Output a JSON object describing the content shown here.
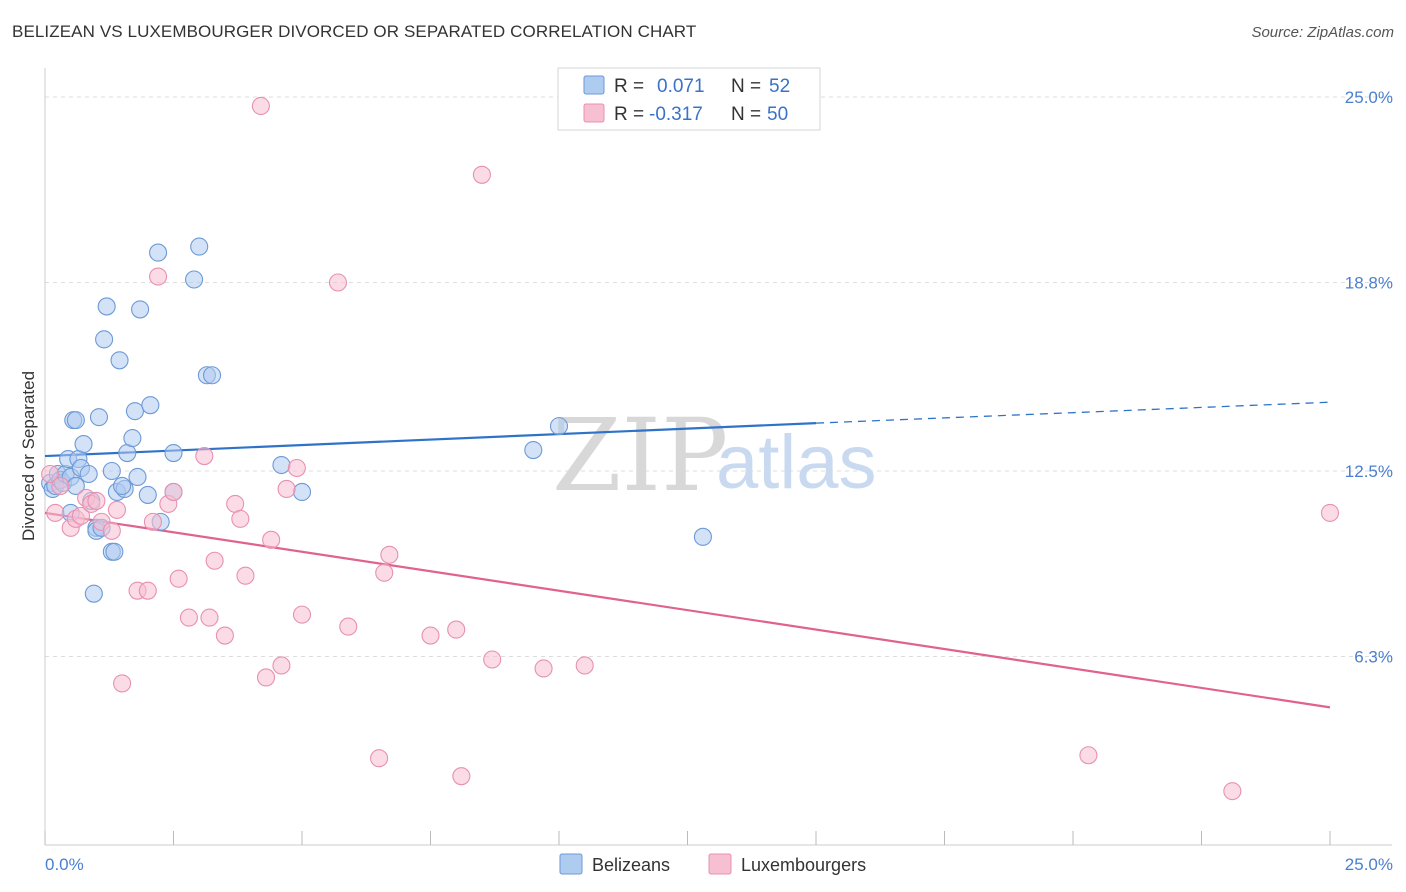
{
  "title": "BELIZEAN VS LUXEMBOURGER DIVORCED OR SEPARATED CORRELATION CHART",
  "source": "Source: ZipAtlas.com",
  "watermark": {
    "zip": "ZIP",
    "atlas": "atlas"
  },
  "colors": {
    "blue_fill": "#aecbf0",
    "blue_stroke": "#6d9ad6",
    "blue_line": "#2f73c9",
    "pink_fill": "#f7bfd2",
    "pink_stroke": "#e890b0",
    "pink_line": "#e0628e",
    "grid": "#dddddd",
    "axis": "#cccccc",
    "tick_text": "#4a7fd0"
  },
  "legend": {
    "rows": [
      {
        "r_label": "R =",
        "r_value": "0.071",
        "n_label": "N =",
        "n_value": "52"
      },
      {
        "r_label": "R =",
        "r_value": "-0.317",
        "n_label": "N =",
        "n_value": "50"
      }
    ]
  },
  "chart_data": {
    "type": "scatter",
    "title": "BELIZEAN VS LUXEMBOURGER DIVORCED OR SEPARATED CORRELATION CHART",
    "xlabel": "",
    "ylabel": "Divorced or Separated",
    "xlim": [
      0,
      25
    ],
    "ylim": [
      0,
      25.6
    ],
    "x_tick_labels": [
      "0.0%",
      "25.0%"
    ],
    "y_ticks": [
      6.3,
      12.5,
      18.8,
      25.0
    ],
    "y_tick_labels": [
      "6.3%",
      "12.5%",
      "18.8%",
      "25.0%"
    ],
    "grid": true,
    "legend_position": "top-center",
    "series": [
      {
        "name": "Belizeans",
        "r": 0.071,
        "n": 52,
        "trend": {
          "x0": 0.0,
          "y0": 13.0,
          "x1": 15.0,
          "y1": 14.1,
          "dashed_to_x": 25.0,
          "dashed_to_y": 14.8
        },
        "points": [
          [
            0.1,
            12.1
          ],
          [
            0.15,
            11.9
          ],
          [
            0.2,
            12.0
          ],
          [
            0.25,
            12.4
          ],
          [
            0.3,
            12.2
          ],
          [
            0.35,
            12.1
          ],
          [
            0.4,
            12.4
          ],
          [
            0.45,
            12.9
          ],
          [
            0.5,
            12.3
          ],
          [
            0.55,
            14.2
          ],
          [
            0.6,
            14.2
          ],
          [
            0.65,
            12.9
          ],
          [
            0.7,
            12.6
          ],
          [
            0.75,
            13.4
          ],
          [
            0.85,
            12.4
          ],
          [
            0.9,
            11.5
          ],
          [
            0.95,
            8.4
          ],
          [
            1.0,
            10.6
          ],
          [
            1.05,
            14.3
          ],
          [
            1.15,
            16.9
          ],
          [
            1.2,
            18.0
          ],
          [
            1.3,
            12.5
          ],
          [
            1.3,
            9.8
          ],
          [
            1.35,
            9.8
          ],
          [
            1.4,
            11.8
          ],
          [
            1.45,
            16.2
          ],
          [
            1.55,
            11.9
          ],
          [
            1.6,
            13.1
          ],
          [
            1.7,
            13.6
          ],
          [
            1.75,
            14.5
          ],
          [
            1.8,
            12.3
          ],
          [
            1.85,
            17.9
          ],
          [
            2.0,
            11.7
          ],
          [
            2.05,
            14.7
          ],
          [
            2.2,
            19.8
          ],
          [
            2.25,
            10.8
          ],
          [
            2.5,
            11.8
          ],
          [
            2.5,
            13.1
          ],
          [
            2.9,
            18.9
          ],
          [
            3.0,
            20.0
          ],
          [
            3.15,
            15.7
          ],
          [
            3.25,
            15.7
          ],
          [
            4.6,
            12.7
          ],
          [
            5.0,
            11.8
          ],
          [
            9.5,
            13.2
          ],
          [
            10.0,
            14.0
          ],
          [
            12.8,
            10.3
          ],
          [
            1.0,
            10.5
          ],
          [
            0.5,
            11.1
          ],
          [
            1.1,
            10.6
          ],
          [
            0.6,
            12.0
          ],
          [
            1.5,
            12.0
          ]
        ]
      },
      {
        "name": "Luxembourgers",
        "r": -0.317,
        "n": 50,
        "trend": {
          "x0": 0.0,
          "y0": 11.1,
          "x1": 25.0,
          "y1": 4.6
        },
        "points": [
          [
            0.1,
            12.4
          ],
          [
            0.2,
            11.1
          ],
          [
            0.3,
            12.0
          ],
          [
            0.5,
            10.6
          ],
          [
            0.6,
            10.9
          ],
          [
            0.7,
            11.0
          ],
          [
            0.8,
            11.6
          ],
          [
            0.9,
            11.4
          ],
          [
            1.0,
            11.5
          ],
          [
            1.1,
            10.8
          ],
          [
            1.3,
            10.5
          ],
          [
            1.4,
            11.2
          ],
          [
            1.5,
            5.4
          ],
          [
            1.8,
            8.5
          ],
          [
            2.0,
            8.5
          ],
          [
            2.1,
            10.8
          ],
          [
            2.2,
            19.0
          ],
          [
            2.4,
            11.4
          ],
          [
            2.5,
            11.8
          ],
          [
            2.6,
            8.9
          ],
          [
            2.8,
            7.6
          ],
          [
            3.1,
            13.0
          ],
          [
            3.2,
            7.6
          ],
          [
            3.3,
            9.5
          ],
          [
            3.5,
            7.0
          ],
          [
            3.7,
            11.4
          ],
          [
            3.8,
            10.9
          ],
          [
            3.9,
            9.0
          ],
          [
            4.2,
            24.7
          ],
          [
            4.3,
            5.6
          ],
          [
            4.4,
            10.2
          ],
          [
            4.6,
            6.0
          ],
          [
            4.7,
            11.9
          ],
          [
            4.9,
            12.6
          ],
          [
            5.0,
            7.7
          ],
          [
            5.7,
            18.8
          ],
          [
            5.9,
            7.3
          ],
          [
            6.5,
            2.9
          ],
          [
            6.6,
            9.1
          ],
          [
            6.7,
            9.7
          ],
          [
            7.5,
            7.0
          ],
          [
            8.0,
            7.2
          ],
          [
            8.1,
            2.3
          ],
          [
            8.5,
            22.4
          ],
          [
            8.7,
            6.2
          ],
          [
            9.7,
            5.9
          ],
          [
            10.5,
            6.0
          ],
          [
            20.3,
            3.0
          ],
          [
            23.1,
            1.8
          ],
          [
            25.0,
            11.1
          ]
        ]
      }
    ]
  },
  "bottom_legend": [
    {
      "label": "Belizeans"
    },
    {
      "label": "Luxembourgers"
    }
  ]
}
